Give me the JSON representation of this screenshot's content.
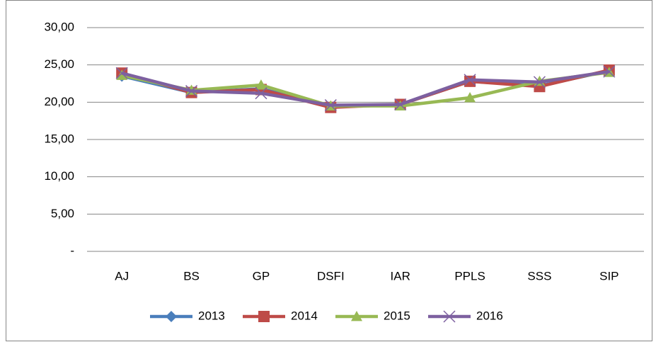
{
  "chart_data": {
    "type": "line",
    "categories": [
      "AJ",
      "BS",
      "GP",
      "DSFI",
      "IAR",
      "PPLS",
      "SSS",
      "SIP"
    ],
    "series": [
      {
        "name": "2013",
        "color": "#4a7ebb",
        "marker": "diamond",
        "values": [
          23.5,
          21.3,
          21.8,
          19.4,
          19.7,
          22.8,
          22.2,
          24.2
        ]
      },
      {
        "name": "2014",
        "color": "#be4b48",
        "marker": "square",
        "values": [
          23.9,
          21.3,
          21.7,
          19.3,
          19.7,
          22.8,
          22.1,
          24.3
        ]
      },
      {
        "name": "2015",
        "color": "#98b954",
        "marker": "triangle",
        "values": [
          23.6,
          21.6,
          22.3,
          19.5,
          19.5,
          20.6,
          22.8,
          24.0
        ]
      },
      {
        "name": "2016",
        "color": "#7d60a0",
        "marker": "x",
        "values": [
          23.9,
          21.5,
          21.2,
          19.6,
          19.7,
          23.0,
          22.7,
          24.1
        ]
      }
    ],
    "ylim": [
      0,
      30
    ],
    "yticks": [
      {
        "value": 0,
        "label": "-"
      },
      {
        "value": 5,
        "label": "5,00"
      },
      {
        "value": 10,
        "label": "10,00"
      },
      {
        "value": 15,
        "label": "15,00"
      },
      {
        "value": 20,
        "label": "20,00"
      },
      {
        "value": 25,
        "label": "25,00"
      },
      {
        "value": 30,
        "label": "30,00"
      }
    ],
    "grid": true,
    "legend": "bottom"
  }
}
